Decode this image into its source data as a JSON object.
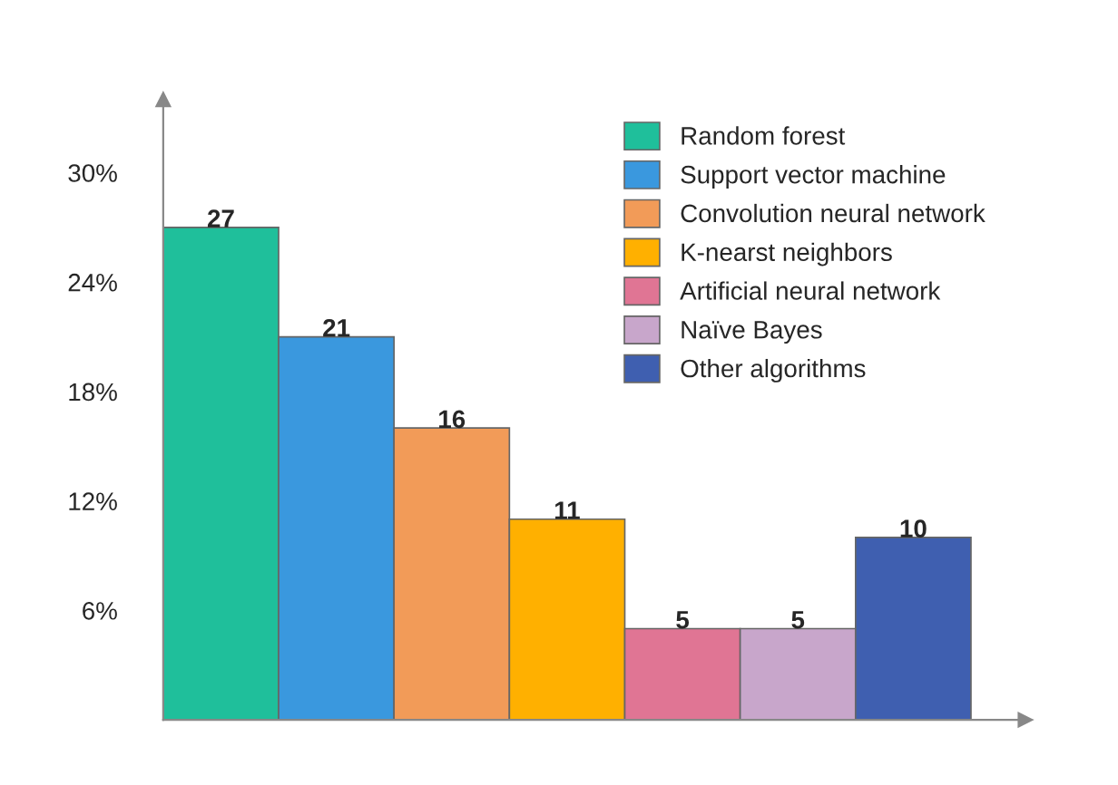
{
  "chart_data": {
    "type": "bar",
    "categories": [
      null,
      null,
      null,
      null,
      null,
      null,
      null
    ],
    "series": [
      {
        "name": "Random forest",
        "color": "#1fbf9b",
        "values": [
          27,
          null,
          null,
          null,
          null,
          null,
          null
        ]
      },
      {
        "name": "Support vector machine",
        "color": "#3a98de",
        "values": [
          null,
          21,
          null,
          null,
          null,
          null,
          null
        ]
      },
      {
        "name": "Convolution neural network",
        "color": "#f29b58",
        "values": [
          null,
          null,
          16,
          null,
          null,
          null,
          null
        ]
      },
      {
        "name": "K-nearst neighbors",
        "color": "#ffb000",
        "values": [
          null,
          null,
          null,
          11,
          null,
          null,
          null
        ]
      },
      {
        "name": "Artificial neural network",
        "color": "#e07594",
        "values": [
          null,
          null,
          null,
          null,
          5,
          null,
          null
        ]
      },
      {
        "name": "Naïve Bayes",
        "color": "#c8a6cb",
        "values": [
          null,
          null,
          null,
          null,
          null,
          5,
          null
        ]
      },
      {
        "name": "Other algorithms",
        "color": "#3f5fb0",
        "values": [
          null,
          null,
          null,
          null,
          null,
          null,
          10
        ]
      }
    ],
    "ylim": [
      0,
      34
    ],
    "yticks": [
      {
        "value": 6,
        "label": "6%"
      },
      {
        "value": 12,
        "label": "12%"
      },
      {
        "value": 18,
        "label": "18%"
      },
      {
        "value": 24,
        "label": "24%"
      },
      {
        "value": 30,
        "label": "30%"
      }
    ],
    "data_labels": true,
    "grid": false,
    "legend": "top right"
  }
}
